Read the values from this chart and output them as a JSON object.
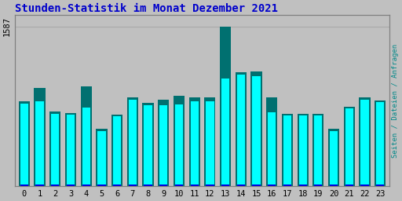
{
  "title": "Stunden-Statistik im Monat Dezember 2021",
  "ylabel_right": "Seiten / Dateien / Anfragen",
  "ytick_label": "1587",
  "hours": [
    0,
    1,
    2,
    3,
    4,
    5,
    6,
    7,
    8,
    9,
    10,
    11,
    12,
    13,
    14,
    15,
    16,
    17,
    18,
    19,
    20,
    21,
    22,
    23
  ],
  "green_values": [
    840,
    980,
    740,
    730,
    990,
    570,
    710,
    880,
    830,
    860,
    900,
    880,
    880,
    1587,
    1130,
    1140,
    880,
    720,
    720,
    720,
    570,
    790,
    880,
    850
  ],
  "cyan_values": [
    820,
    840,
    720,
    710,
    780,
    550,
    695,
    860,
    805,
    805,
    815,
    845,
    845,
    1070,
    1110,
    1090,
    735,
    705,
    705,
    705,
    550,
    775,
    862,
    832
  ],
  "blue_values": [
    15,
    15,
    15,
    15,
    15,
    15,
    15,
    15,
    15,
    15,
    15,
    15,
    15,
    15,
    15,
    15,
    15,
    15,
    15,
    15,
    15,
    15,
    15,
    15
  ],
  "bar_width": 0.72,
  "background_color": "#c0c0c0",
  "plot_bg_color": "#c0c0c0",
  "green_color": "#007070",
  "cyan_color": "#00ffff",
  "blue_color": "#0000dd",
  "title_color": "#0000cc",
  "ylabel_right_color": "#008888",
  "grid_color": "#aaaaaa",
  "ylim": [
    0,
    1700
  ],
  "title_fontsize": 10,
  "tick_fontsize": 7.5,
  "ylabel_fontsize": 6.5
}
